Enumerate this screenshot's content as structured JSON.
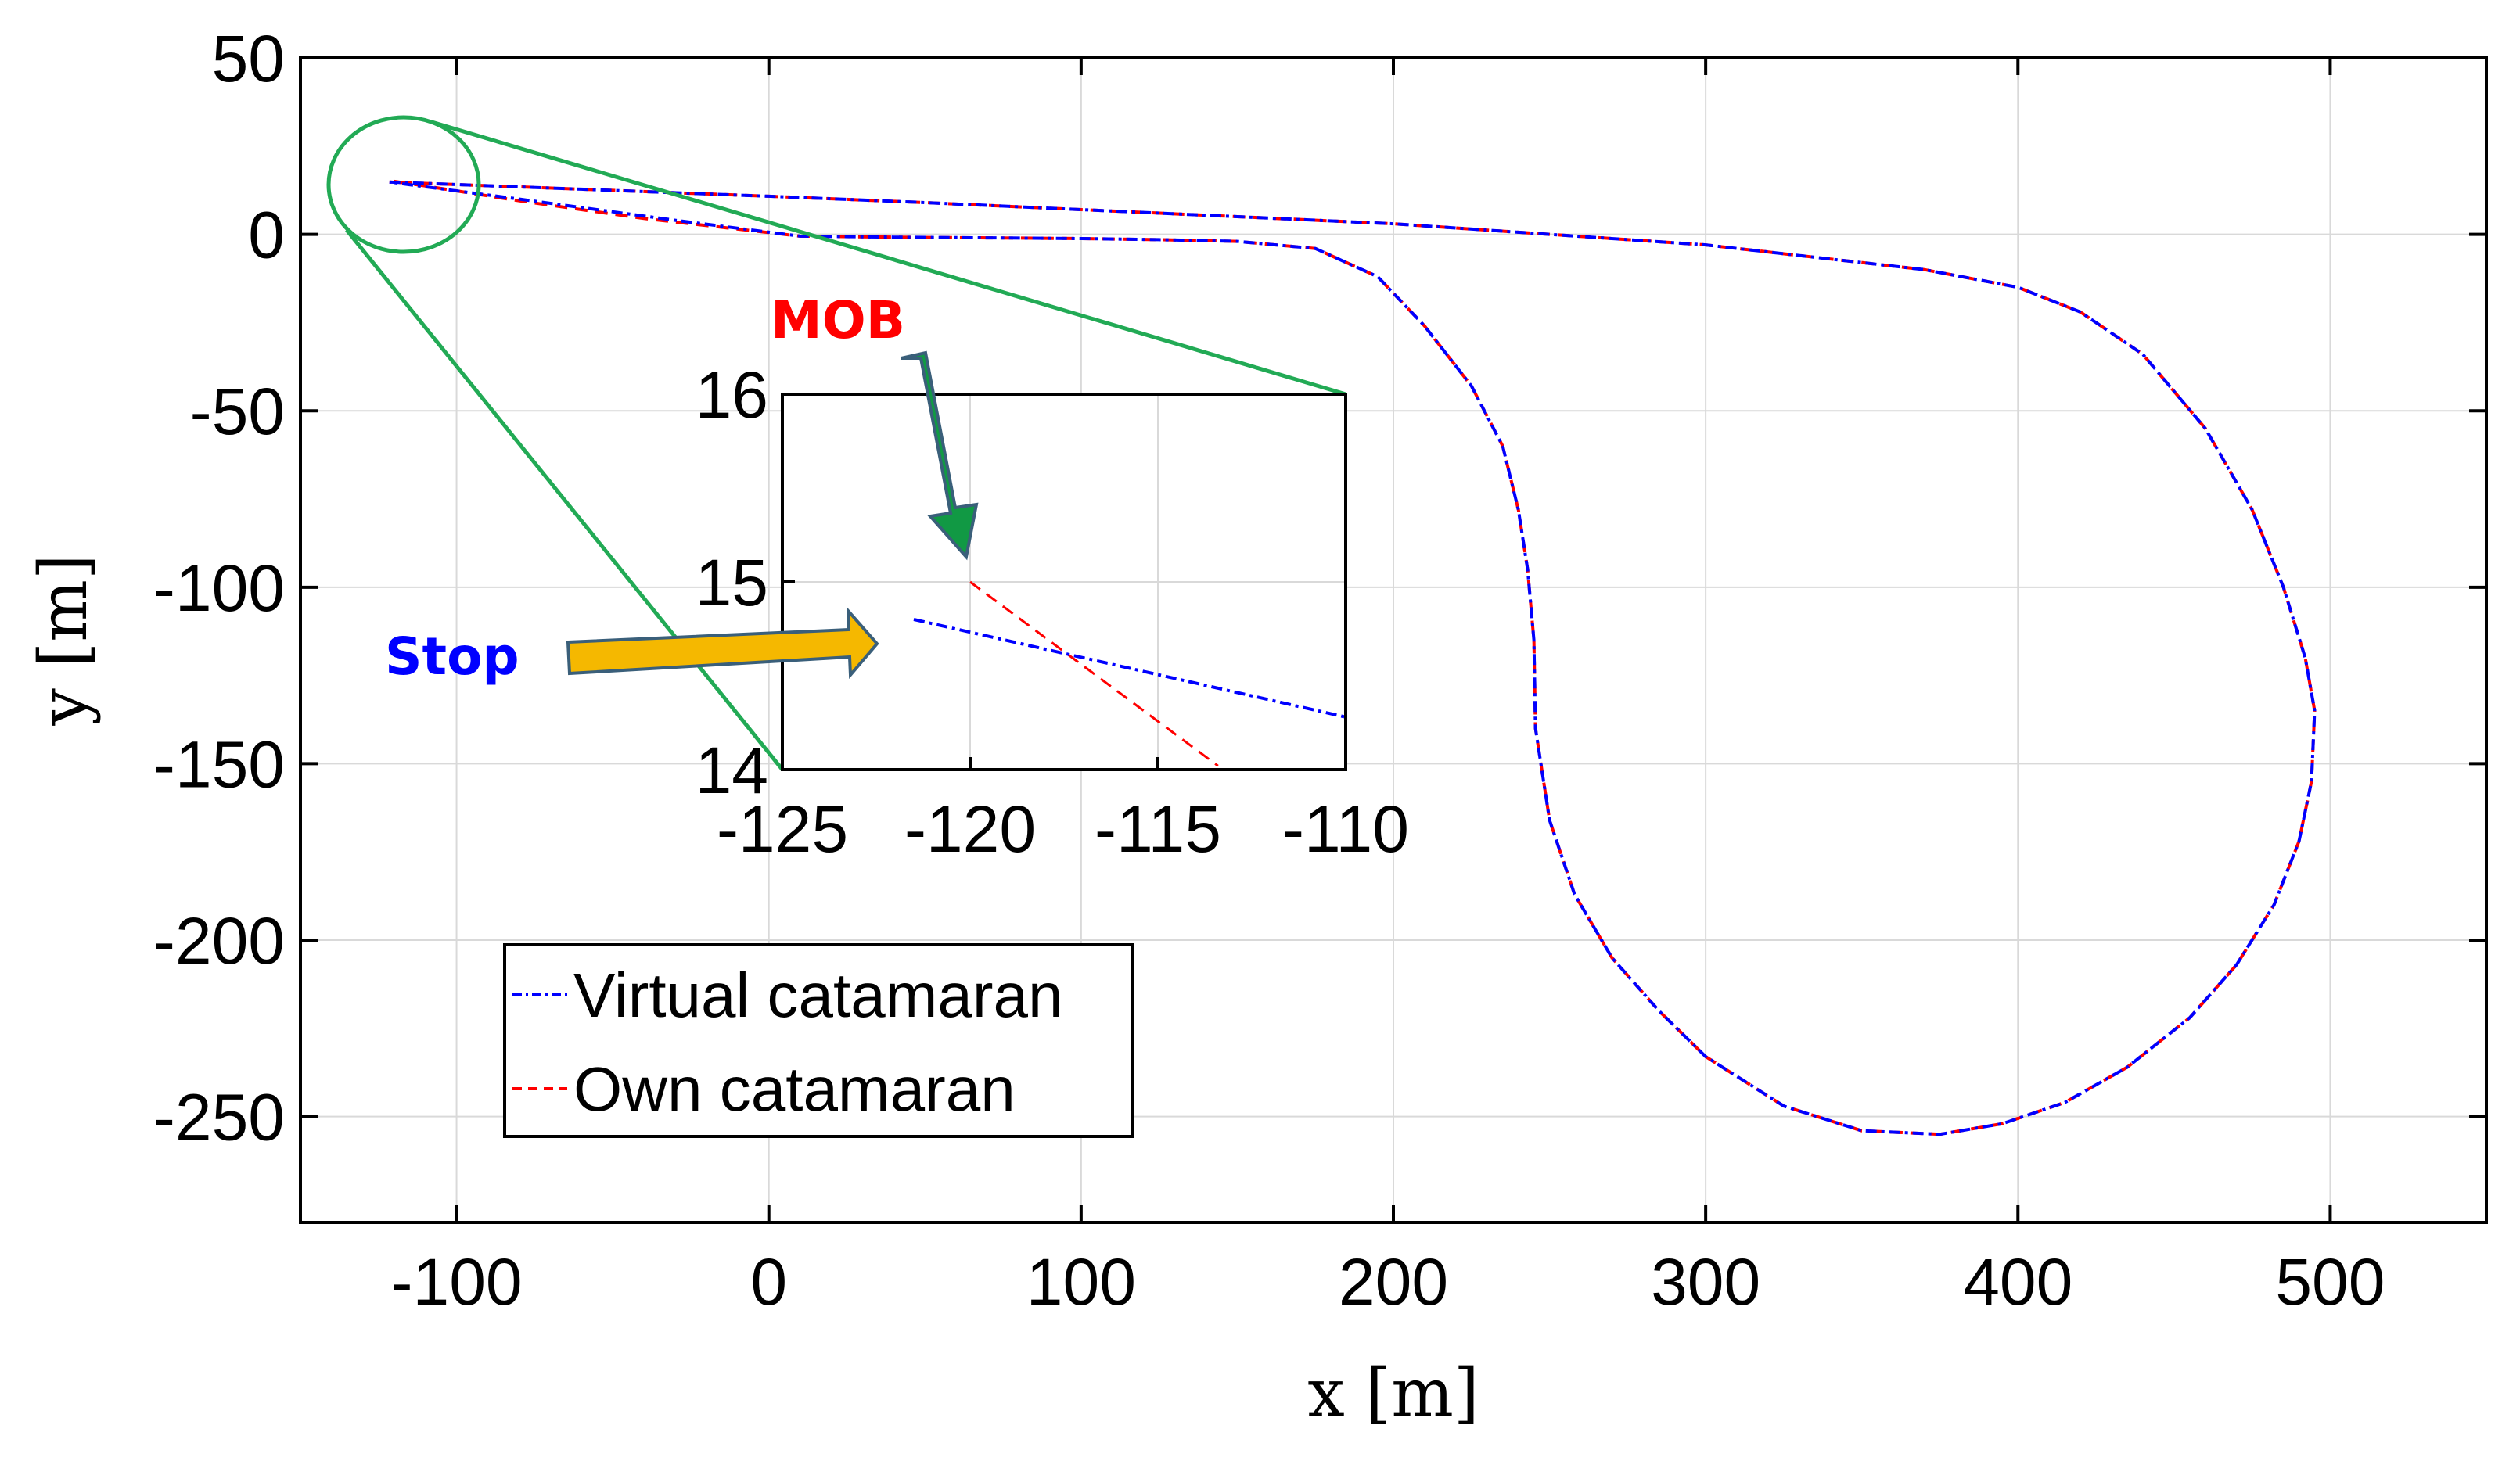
{
  "chart_data": {
    "type": "line",
    "title": "",
    "xlabel": "x [m]",
    "ylabel": "y [m]",
    "xlim": [
      -150,
      550
    ],
    "ylim": [
      -280,
      50
    ],
    "xticks": [
      -100,
      0,
      100,
      200,
      300,
      400,
      500
    ],
    "yticks": [
      50,
      0,
      -50,
      -100,
      -150,
      -200,
      -250
    ],
    "grid": true,
    "legend_position": "bottom-left",
    "series": [
      {
        "name": "Virtual catamaran",
        "color": "#0000ff",
        "style": "dash-dot",
        "x": [
          -121.5,
          -60,
          0,
          50,
          100,
          150,
          200,
          250,
          300,
          340,
          370,
          400,
          420,
          440,
          460,
          475,
          485,
          492,
          495,
          494,
          490,
          482,
          470,
          455,
          435,
          415,
          395,
          375,
          350,
          325,
          300,
          285,
          270,
          258,
          250,
          245.5,
          245,
          243,
          240,
          235,
          225,
          210,
          195,
          175,
          150,
          125,
          100,
          70,
          40,
          10,
          -30,
          -80,
          -121.5
        ],
        "y": [
          14.8,
          12.8,
          10.8,
          9,
          7,
          5,
          3,
          0,
          -3,
          -7,
          -10,
          -15,
          -22,
          -34,
          -55,
          -78,
          -100,
          -120,
          -135,
          -155,
          -172,
          -190,
          -207,
          -222,
          -236,
          -246,
          -252,
          -255,
          -254,
          -247,
          -233,
          -220,
          -205,
          -187,
          -166,
          -140,
          -115,
          -95,
          -78,
          -60,
          -43,
          -26,
          -12,
          -4,
          -2,
          -1.5,
          -1.2,
          -1,
          -0.8,
          -0.5,
          4,
          10,
          14.8
        ]
      },
      {
        "name": "Own catamaran",
        "color": "#ff0000",
        "style": "dashed",
        "x": [
          -120,
          -110,
          -80,
          -40,
          10,
          40,
          70,
          100,
          125,
          150,
          175,
          195,
          210,
          225,
          235,
          240,
          243,
          245,
          245.5,
          250,
          258,
          270,
          285,
          300,
          325,
          350,
          375,
          395,
          415,
          435,
          455,
          470,
          482,
          490,
          494,
          495,
          492,
          485,
          475,
          460,
          440,
          420,
          400,
          370,
          340,
          300,
          250,
          200,
          150,
          100,
          50,
          0,
          -60,
          -121.5
        ],
        "y": [
          15,
          13.7,
          9.5,
          4.5,
          -0.5,
          -0.8,
          -1,
          -1.2,
          -1.5,
          -2,
          -4,
          -12,
          -26,
          -43,
          -60,
          -78,
          -95,
          -115,
          -140,
          -166,
          -187,
          -205,
          -220,
          -233,
          -247,
          -254,
          -255,
          -252,
          -246,
          -236,
          -222,
          -207,
          -190,
          -172,
          -155,
          -135,
          -120,
          -100,
          -78,
          -55,
          -34,
          -22,
          -15,
          -10,
          -7,
          -3,
          0,
          3,
          5,
          7,
          9,
          10.8,
          12.8,
          14.8
        ]
      }
    ],
    "inset": {
      "xlim": [
        -125,
        -110
      ],
      "ylim": [
        14,
        16
      ],
      "xticks": [
        -125,
        -120,
        -115,
        -110
      ],
      "yticks": [
        16,
        15,
        14
      ],
      "grid": true,
      "series": [
        {
          "name": "Virtual catamaran",
          "x": [
            -121.5,
            -110
          ],
          "y": [
            14.8,
            14.28
          ]
        },
        {
          "name": "Own catamaran",
          "x": [
            -120,
            -113.4
          ],
          "y": [
            15,
            14.02
          ]
        }
      ]
    },
    "annotations": [
      {
        "text": "MOB",
        "color": "#ff0000"
      },
      {
        "text": "Stop",
        "color": "#0000ff"
      }
    ]
  }
}
